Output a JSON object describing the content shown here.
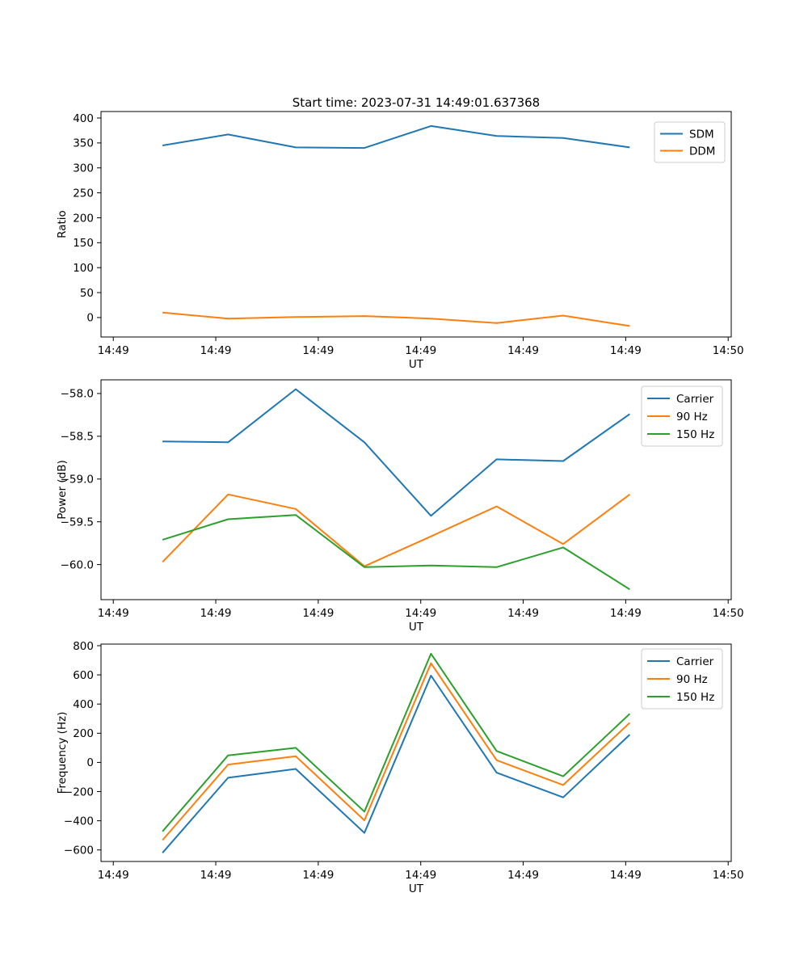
{
  "figure_title": "Start time: 2023-07-31 14:49:01.637368",
  "palette": {
    "blue": "#1f77b4",
    "orange": "#ff7f0e",
    "green": "#2ca02c"
  },
  "chart_data": [
    {
      "type": "line",
      "id": "ratio",
      "title": "Start time: 2023-07-31 14:49:01.637368",
      "xlabel": "UT",
      "ylabel": "Ratio",
      "x": [
        4.8,
        11.2,
        17.8,
        24.5,
        31.0,
        37.4,
        43.9,
        50.4
      ],
      "xlim": [
        -1.2,
        60.3
      ],
      "ylim": [
        -39,
        413
      ],
      "grid": false,
      "legend_position": "upper right",
      "xticks": {
        "values": [
          0,
          10,
          20,
          30,
          40,
          50,
          60
        ],
        "labels": [
          "14:49",
          "14:49",
          "14:49",
          "14:49",
          "14:49",
          "14:49",
          "14:50"
        ]
      },
      "yticks": {
        "values": [
          0,
          50,
          100,
          150,
          200,
          250,
          300,
          350,
          400
        ],
        "labels": [
          "0",
          "50",
          "100",
          "150",
          "200",
          "250",
          "300",
          "350",
          "400"
        ]
      },
      "series": [
        {
          "name": "SDM",
          "color": "#1f77b4",
          "values": [
            345,
            367,
            341,
            340,
            384,
            364,
            360,
            341
          ]
        },
        {
          "name": "DDM",
          "color": "#ff7f0e",
          "values": [
            10,
            -2,
            1,
            3,
            -2,
            -11,
            4,
            -17
          ]
        }
      ]
    },
    {
      "type": "line",
      "id": "power",
      "title": "",
      "xlabel": "UT",
      "ylabel": "Power (dB)",
      "x": [
        4.8,
        11.2,
        17.8,
        24.5,
        31.0,
        37.4,
        43.9,
        50.4
      ],
      "xlim": [
        -1.2,
        60.3
      ],
      "ylim": [
        -60.41,
        -57.84
      ],
      "grid": false,
      "legend_position": "upper right",
      "xticks": {
        "values": [
          0,
          10,
          20,
          30,
          40,
          50,
          60
        ],
        "labels": [
          "14:49",
          "14:49",
          "14:49",
          "14:49",
          "14:49",
          "14:49",
          "14:50"
        ]
      },
      "yticks": {
        "values": [
          -58.0,
          -58.5,
          -59.0,
          -59.5,
          -60.0
        ],
        "labels": [
          "−58.0",
          "−58.5",
          "−59.0",
          "−59.5",
          "−60.0"
        ]
      },
      "series": [
        {
          "name": "Carrier",
          "color": "#1f77b4",
          "values": [
            -58.56,
            -58.57,
            -57.95,
            -58.57,
            -59.43,
            -58.77,
            -58.79,
            -58.24
          ]
        },
        {
          "name": "90 Hz",
          "color": "#ff7f0e",
          "values": [
            -59.97,
            -59.18,
            -59.35,
            -60.02,
            -59.67,
            -59.32,
            -59.76,
            -59.18
          ]
        },
        {
          "name": "150 Hz",
          "color": "#2ca02c",
          "values": [
            -59.71,
            -59.47,
            -59.42,
            -60.03,
            -60.01,
            -60.03,
            -59.8,
            -60.29
          ]
        }
      ]
    },
    {
      "type": "line",
      "id": "frequency",
      "title": "",
      "xlabel": "UT",
      "ylabel": "Frequency (Hz)",
      "x": [
        4.8,
        11.2,
        17.8,
        24.5,
        31.0,
        37.4,
        43.9,
        50.4
      ],
      "xlim": [
        -1.2,
        60.3
      ],
      "ylim": [
        -679,
        811
      ],
      "grid": false,
      "legend_position": "upper right",
      "xticks": {
        "values": [
          0,
          10,
          20,
          30,
          40,
          50,
          60
        ],
        "labels": [
          "14:49",
          "14:49",
          "14:49",
          "14:49",
          "14:49",
          "14:49",
          "14:50"
        ]
      },
      "yticks": {
        "values": [
          -600,
          -400,
          -200,
          0,
          200,
          400,
          600,
          800
        ],
        "labels": [
          "−600",
          "−400",
          "−200",
          "0",
          "200",
          "400",
          "600",
          "800"
        ]
      },
      "series": [
        {
          "name": "Carrier",
          "color": "#1f77b4",
          "values": [
            -620,
            -105,
            -45,
            -483,
            595,
            -70,
            -240,
            190
          ]
        },
        {
          "name": "90 Hz",
          "color": "#ff7f0e",
          "values": [
            -533,
            -15,
            42,
            -397,
            680,
            15,
            -155,
            272
          ]
        },
        {
          "name": "150 Hz",
          "color": "#2ca02c",
          "values": [
            -473,
            48,
            100,
            -337,
            745,
            78,
            -95,
            333
          ]
        }
      ]
    }
  ]
}
